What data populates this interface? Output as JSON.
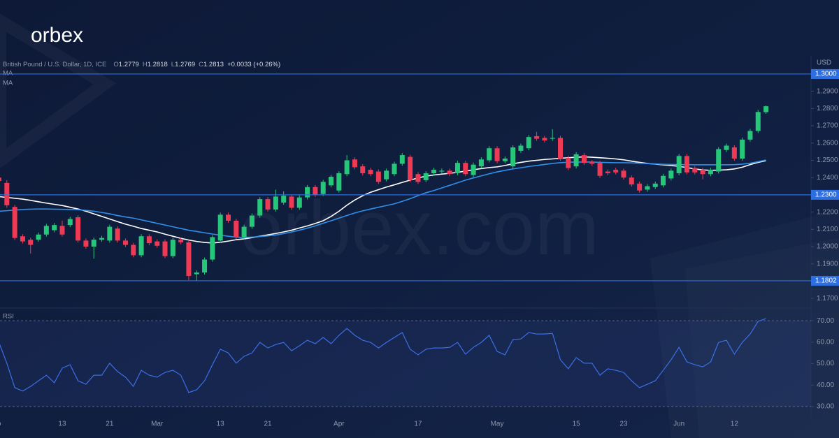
{
  "logo": "orbex",
  "watermark": "orbex.com",
  "chart_data": [
    {
      "type": "candlestick",
      "title": "British Pound / U.S. Dollar, 1D, ICE",
      "ohlc_legend": [
        {
          "label": "O",
          "value": "1.2779"
        },
        {
          "label": "H",
          "value": "1.2818"
        },
        {
          "label": "L",
          "value": "1.2769"
        },
        {
          "label": "C",
          "value": "1.2813"
        }
      ],
      "change_label": "+0.0033 (+0.26%)",
      "unit": "USD",
      "up_color": "#27c77a",
      "down_color": "#ee3a55",
      "categories": [
        "b",
        null,
        null,
        null,
        null,
        null,
        null,
        null,
        "13",
        null,
        null,
        null,
        null,
        null,
        "21",
        null,
        null,
        null,
        null,
        null,
        "Mar",
        null,
        null,
        null,
        null,
        null,
        null,
        null,
        "13",
        null,
        null,
        null,
        null,
        null,
        "21",
        null,
        null,
        null,
        null,
        null,
        null,
        null,
        null,
        "Apr",
        null,
        null,
        null,
        null,
        null,
        null,
        null,
        null,
        null,
        "17",
        null,
        null,
        null,
        null,
        null,
        null,
        null,
        null,
        null,
        "May",
        null,
        null,
        null,
        null,
        null,
        null,
        null,
        null,
        null,
        "15",
        null,
        null,
        null,
        null,
        null,
        "23",
        null,
        null,
        null,
        null,
        null,
        null,
        "Jun",
        null,
        null,
        null,
        null,
        null,
        null,
        "12",
        null,
        null,
        null,
        null
      ],
      "open": [
        1.24,
        1.2369,
        1.223,
        1.206,
        1.204,
        1.204,
        1.207,
        1.2095,
        1.212,
        1.2125,
        1.217,
        1.2035,
        1.2,
        1.204,
        1.2035,
        1.2105,
        1.2035,
        1.201,
        1.195,
        1.206,
        1.203,
        1.203,
        1.1945,
        1.204,
        1.2025,
        1.184,
        1.185,
        1.1925,
        1.2035,
        1.2185,
        1.215,
        1.2055,
        1.2115,
        1.218,
        1.2275,
        1.2215,
        1.2255,
        1.229,
        1.2225,
        1.2285,
        1.2345,
        1.2305,
        1.2355,
        1.2325,
        1.242,
        1.2505,
        1.2465,
        1.2445,
        1.2435,
        1.239,
        1.242,
        1.248,
        1.252,
        1.242,
        1.2385,
        1.2425,
        1.2435,
        1.244,
        1.2425,
        1.2485,
        1.2415,
        1.2465,
        1.25,
        1.257,
        1.2495,
        1.2465,
        1.2555,
        1.257,
        1.264,
        1.263,
        1.2625,
        1.263,
        1.2515,
        1.2465,
        1.253,
        1.249,
        1.2485,
        1.2435,
        1.2445,
        1.244,
        1.24,
        1.2365,
        1.233,
        1.2345,
        1.2355,
        1.2395,
        1.2425,
        1.2525,
        1.2455,
        1.2445,
        1.242,
        1.2435,
        1.256,
        1.2575,
        1.251,
        1.262,
        1.267,
        1.2779
      ],
      "high": [
        1.2412,
        1.2385,
        1.2242,
        1.2072,
        1.2052,
        1.2082,
        1.2132,
        1.2137,
        1.215,
        1.2172,
        1.2182,
        1.2047,
        1.2052,
        1.2062,
        1.2127,
        1.2117,
        1.2047,
        1.2022,
        1.2072,
        1.2072,
        1.2042,
        1.2042,
        1.2052,
        1.2052,
        1.2037,
        1.1862,
        1.1937,
        1.2067,
        1.2197,
        1.2197,
        1.2162,
        1.2127,
        1.2192,
        1.2287,
        1.2287,
        1.233,
        1.232,
        1.2302,
        1.2297,
        1.2357,
        1.2357,
        1.2387,
        1.2417,
        1.2437,
        1.253,
        1.2517,
        1.2477,
        1.2457,
        1.2447,
        1.2452,
        1.2492,
        1.2542,
        1.2532,
        1.2432,
        1.2437,
        1.2457,
        1.2452,
        1.2452,
        1.2497,
        1.2497,
        1.2487,
        1.2517,
        1.2582,
        1.2582,
        1.2522,
        1.2587,
        1.2597,
        1.2647,
        1.2665,
        1.2642,
        1.268,
        1.2642,
        1.2527,
        1.2547,
        1.2542,
        1.2502,
        1.2497,
        1.2447,
        1.2457,
        1.2452,
        1.2412,
        1.2377,
        1.2362,
        1.2377,
        1.2422,
        1.2452,
        1.2537,
        1.2537,
        1.2467,
        1.2457,
        1.2457,
        1.2577,
        1.2597,
        1.2587,
        1.2632,
        1.2682,
        1.2792,
        1.2818
      ],
      "low": [
        1.2368,
        1.2225,
        1.2038,
        1.2018,
        1.196,
        1.2028,
        1.2058,
        1.2083,
        1.2058,
        1.2113,
        1.2023,
        1.1988,
        1.193,
        1.2028,
        1.2023,
        1.2023,
        1.1998,
        1.1938,
        1.1938,
        1.2008,
        1.1993,
        1.1933,
        1.1933,
        1.2013,
        1.1805,
        1.1802,
        1.1838,
        1.1913,
        1.2023,
        1.2138,
        1.2043,
        1.2043,
        1.2103,
        1.2168,
        1.2203,
        1.2203,
        1.2243,
        1.2213,
        1.2213,
        1.2273,
        1.2288,
        1.2293,
        1.2343,
        1.2313,
        1.2408,
        1.2448,
        1.2413,
        1.2408,
        1.2363,
        1.2378,
        1.2408,
        1.2468,
        1.2373,
        1.2363,
        1.2373,
        1.2413,
        1.2423,
        1.2408,
        1.2413,
        1.2408,
        1.2403,
        1.2453,
        1.2488,
        1.2483,
        1.2483,
        1.2453,
        1.2543,
        1.2558,
        1.2613,
        1.2603,
        1.2613,
        1.2498,
        1.2443,
        1.2453,
        1.2473,
        1.2468,
        1.2398,
        1.2413,
        1.2418,
        1.2388,
        1.2348,
        1.2313,
        1.2318,
        1.2333,
        1.2343,
        1.2383,
        1.2413,
        1.2418,
        1.2418,
        1.239,
        1.2408,
        1.2423,
        1.2548,
        1.2498,
        1.2498,
        1.2608,
        1.2658,
        1.2769
      ],
      "close": [
        1.238,
        1.224,
        1.205,
        1.203,
        1.201,
        1.207,
        1.212,
        1.2125,
        1.207,
        1.216,
        1.2035,
        1.2,
        1.204,
        1.205,
        1.2115,
        1.2035,
        1.201,
        1.195,
        1.206,
        1.202,
        1.2005,
        1.1945,
        1.204,
        1.2025,
        1.183,
        1.185,
        1.1925,
        1.2055,
        1.2185,
        1.215,
        1.2055,
        1.2115,
        1.218,
        1.2275,
        1.2215,
        1.229,
        1.2295,
        1.2225,
        1.2285,
        1.2345,
        1.23,
        1.2375,
        1.2405,
        1.2425,
        1.25,
        1.246,
        1.2425,
        1.242,
        1.2375,
        1.244,
        1.248,
        1.253,
        1.2385,
        1.2375,
        1.2425,
        1.2445,
        1.244,
        1.242,
        1.2485,
        1.242,
        1.2475,
        1.2505,
        1.257,
        1.2495,
        1.251,
        1.2575,
        1.2585,
        1.2635,
        1.2625,
        1.2615,
        1.263,
        1.251,
        1.2455,
        1.2535,
        1.2485,
        1.248,
        1.241,
        1.2425,
        1.243,
        1.24,
        1.236,
        1.2325,
        1.235,
        1.2365,
        1.241,
        1.244,
        1.2525,
        1.243,
        1.243,
        1.242,
        1.2445,
        1.2565,
        1.2585,
        1.251,
        1.262,
        1.267,
        1.278,
        1.2813
      ],
      "overlays": [
        {
          "name": "MA",
          "color": "#ffffff",
          "values": [
            1.229,
            1.2285,
            1.228,
            1.2275,
            1.2268,
            1.226,
            1.2252,
            1.2245,
            1.2238,
            1.2228,
            1.2218,
            1.2205,
            1.219,
            1.2175,
            1.216,
            1.2145,
            1.213,
            1.2118,
            1.2105,
            1.2095,
            1.2085,
            1.2072,
            1.206,
            1.2048,
            1.2038,
            1.203,
            1.2024,
            1.2021,
            1.2025,
            1.2032,
            1.204,
            1.2045,
            1.2052,
            1.206,
            1.2068,
            1.2076,
            1.2085,
            1.2095,
            1.2108,
            1.212,
            1.2134,
            1.215,
            1.2175,
            1.2205,
            1.224,
            1.227,
            1.2295,
            1.2315,
            1.233,
            1.2345,
            1.2358,
            1.2372,
            1.2385,
            1.2398,
            1.2408,
            1.2415,
            1.242,
            1.2425,
            1.243,
            1.2438,
            1.2445,
            1.2452,
            1.2458,
            1.2462,
            1.247,
            1.248,
            1.2488,
            1.2495,
            1.25,
            1.2505,
            1.2508,
            1.2512,
            1.2515,
            1.2518,
            1.252,
            1.2518,
            1.2515,
            1.2512,
            1.2508,
            1.2503,
            1.2495,
            1.2488,
            1.2482,
            1.2478,
            1.2474,
            1.247,
            1.2465,
            1.2458,
            1.245,
            1.2444,
            1.2442,
            1.2443,
            1.2445,
            1.245,
            1.246,
            1.2475,
            1.2488,
            1.2498
          ]
        },
        {
          "name": "MA",
          "color": "#2f8fe8",
          "values": [
            1.2205,
            1.2208,
            1.2212,
            1.2215,
            1.2217,
            1.2218,
            1.2218,
            1.2217,
            1.2216,
            1.2215,
            1.2214,
            1.221,
            1.2205,
            1.2198,
            1.219,
            1.218,
            1.2172,
            1.2165,
            1.2155,
            1.2145,
            1.2135,
            1.2125,
            1.2115,
            1.2105,
            1.2095,
            1.2088,
            1.208,
            1.2073,
            1.2066,
            1.206,
            1.2055,
            1.2053,
            1.2055,
            1.2058,
            1.2062,
            1.2067,
            1.2075,
            1.2085,
            1.2095,
            1.2107,
            1.212,
            1.2135,
            1.215,
            1.2165,
            1.218,
            1.2195,
            1.2207,
            1.2218,
            1.2228,
            1.2238,
            1.2248,
            1.2262,
            1.2278,
            1.2295,
            1.2312,
            1.2325,
            1.234,
            1.2355,
            1.237,
            1.2385,
            1.2398,
            1.241,
            1.2422,
            1.2433,
            1.2442,
            1.245,
            1.2457,
            1.2464,
            1.247,
            1.2476,
            1.2482,
            1.2486,
            1.2489,
            1.249,
            1.249,
            1.249,
            1.2488,
            1.2487,
            1.2486,
            1.2486,
            1.2485,
            1.2483,
            1.2481,
            1.2479,
            1.2477,
            1.2476,
            1.2475,
            1.2475,
            1.2474,
            1.2474,
            1.2474,
            1.2474,
            1.2474,
            1.2475,
            1.2478,
            1.2483,
            1.2492,
            1.2502
          ]
        }
      ],
      "levels": [
        {
          "value": 1.3,
          "label": "1.3000"
        },
        {
          "value": 1.23,
          "label": "1.2300"
        },
        {
          "value": 1.1802,
          "label": "1.1802"
        }
      ],
      "level_color": "#2d6fe0",
      "ylim": [
        1.1648,
        1.3105
      ],
      "yticks": [
        {
          "value": 1.29,
          "label": "1.2900"
        },
        {
          "value": 1.28,
          "label": "1.2800"
        },
        {
          "value": 1.27,
          "label": "1.2700"
        },
        {
          "value": 1.26,
          "label": "1.2600"
        },
        {
          "value": 1.25,
          "label": "1.2500"
        },
        {
          "value": 1.24,
          "label": "1.2400"
        },
        {
          "value": 1.22,
          "label": "1.2200"
        },
        {
          "value": 1.21,
          "label": "1.2100"
        },
        {
          "value": 1.2,
          "label": "1.2000"
        },
        {
          "value": 1.19,
          "label": "1.1900"
        },
        {
          "value": 1.17,
          "label": "1.1700"
        }
      ]
    },
    {
      "type": "line",
      "title": "RSI",
      "series": [
        {
          "name": "RSI",
          "color": "#3b6fe6",
          "values": [
            59.9,
            50.2,
            38.8,
            37.2,
            39.4,
            42.0,
            44.6,
            41.1,
            47.9,
            49.5,
            42.0,
            40.4,
            44.6,
            44.6,
            50.2,
            46.3,
            43.7,
            39.4,
            46.9,
            44.6,
            43.7,
            45.9,
            46.9,
            44.6,
            36.5,
            37.8,
            42.0,
            49.5,
            56.7,
            55.0,
            50.2,
            53.4,
            55.0,
            59.9,
            57.3,
            58.9,
            59.9,
            56.0,
            58.3,
            60.9,
            59.3,
            62.2,
            59.3,
            63.2,
            66.4,
            63.2,
            60.9,
            59.9,
            57.3,
            59.9,
            62.2,
            64.5,
            56.7,
            54.1,
            56.7,
            57.3,
            57.3,
            57.6,
            59.9,
            54.4,
            57.6,
            59.9,
            63.2,
            55.7,
            54.1,
            61.2,
            61.5,
            64.5,
            63.8,
            63.8,
            64.1,
            51.8,
            47.6,
            52.8,
            50.2,
            50.2,
            44.6,
            47.6,
            46.9,
            45.9,
            42.0,
            38.8,
            40.4,
            42.0,
            46.9,
            51.8,
            57.6,
            50.8,
            49.5,
            48.5,
            50.8,
            59.9,
            60.9,
            54.4,
            59.9,
            63.8,
            69.7,
            71.0
          ]
        }
      ],
      "band": [
        30,
        70
      ],
      "ylim": [
        25.1,
        75.9
      ],
      "yticks": [
        {
          "value": 70,
          "label": "70.00"
        },
        {
          "value": 60,
          "label": "60.00"
        },
        {
          "value": 50,
          "label": "50.00"
        },
        {
          "value": 40,
          "label": "40.00"
        },
        {
          "value": 30,
          "label": "30.00"
        }
      ]
    }
  ]
}
